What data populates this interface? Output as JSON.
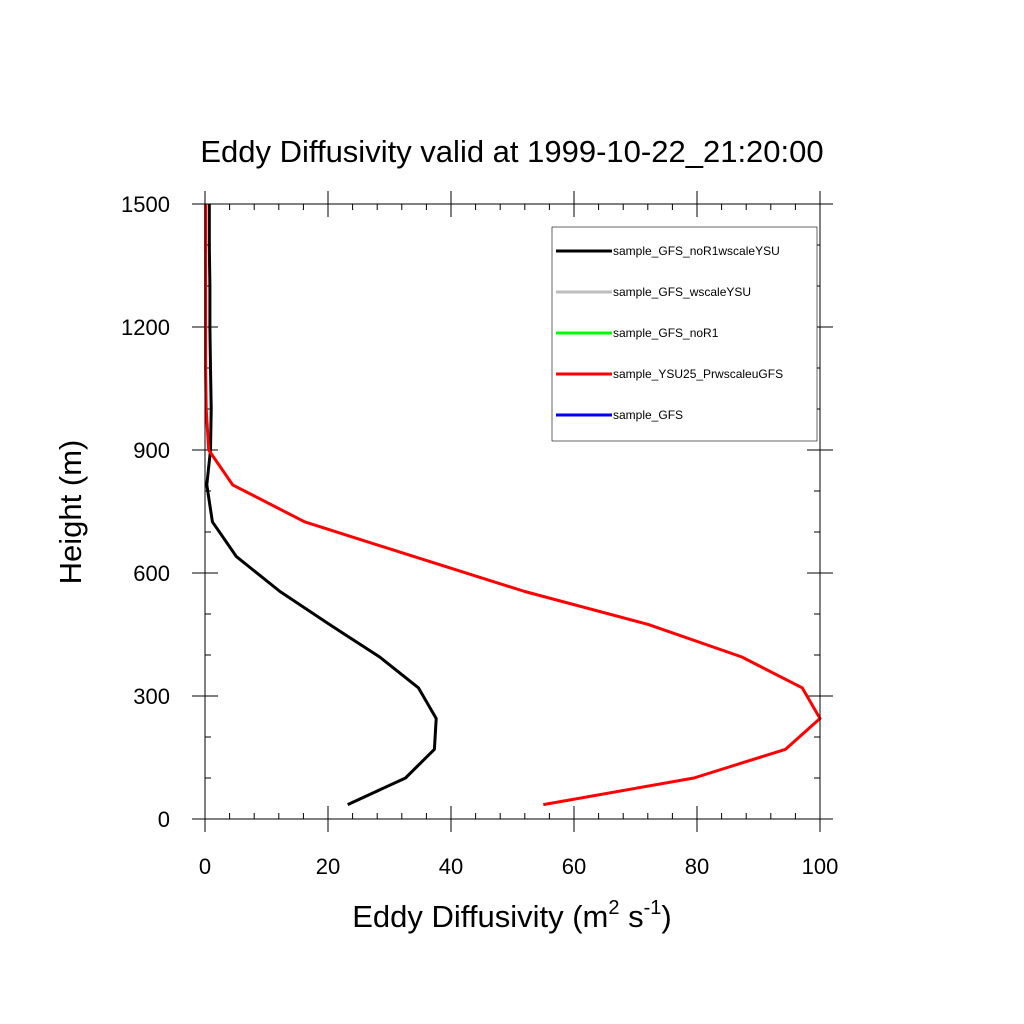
{
  "chart_data": {
    "type": "line",
    "title": "Eddy Diffusivity valid at 1999-10-22_21:20:00",
    "xlabel": {
      "base": "Eddy Diffusivity (m",
      "sup1": "2",
      "mid": " s",
      "sup2": "-1",
      "end": ")"
    },
    "ylabel": "Height (m)",
    "xlim": [
      0,
      100
    ],
    "ylim": [
      0,
      1500
    ],
    "x_ticks": [
      0,
      20,
      40,
      60,
      80,
      100
    ],
    "x_tick_labels": [
      "0",
      "20",
      "40",
      "60",
      "80",
      "100"
    ],
    "y_ticks": [
      0,
      300,
      600,
      900,
      1200,
      1500
    ],
    "y_tick_labels": [
      "0",
      "300",
      "600",
      "900",
      "1200",
      "1500"
    ],
    "x_minor_step": 4,
    "y_minor_step": 100,
    "grid": false,
    "legend_position": "top-right",
    "series": [
      {
        "name": "sample_GFS_noR1wscaleYSU",
        "color": "#000000",
        "points": [
          [
            23.2,
            35
          ],
          [
            32.6,
            100
          ],
          [
            37.3,
            170
          ],
          [
            37.6,
            245
          ],
          [
            34.7,
            320
          ],
          [
            28.4,
            395
          ],
          [
            20.2,
            475
          ],
          [
            12.2,
            555
          ],
          [
            5.1,
            640
          ],
          [
            1.2,
            725
          ],
          [
            0.3,
            815
          ],
          [
            0.9,
            900
          ],
          [
            1.0,
            1000
          ],
          [
            0.9,
            1100
          ],
          [
            0.8,
            1200
          ],
          [
            0.8,
            1300
          ],
          [
            0.7,
            1400
          ],
          [
            0.7,
            1500
          ]
        ]
      },
      {
        "name": "sample_GFS_wscaleYSU",
        "color": "#bebebe",
        "points": []
      },
      {
        "name": "sample_GFS_noR1",
        "color": "#00ff00",
        "points": []
      },
      {
        "name": "sample_YSU25_PrwscaleuGFS",
        "color": "#ff0000",
        "points": [
          [
            55.0,
            35
          ],
          [
            79.5,
            100
          ],
          [
            94.4,
            170
          ],
          [
            100.0,
            245
          ],
          [
            97.1,
            320
          ],
          [
            87.3,
            395
          ],
          [
            72.0,
            475
          ],
          [
            52.0,
            555
          ],
          [
            34.0,
            640
          ],
          [
            16.2,
            725
          ],
          [
            4.5,
            815
          ],
          [
            0.6,
            900
          ],
          [
            0.2,
            1000
          ],
          [
            0.1,
            1100
          ],
          [
            0.1,
            1200
          ],
          [
            0.1,
            1300
          ],
          [
            0.1,
            1400
          ],
          [
            0.1,
            1500
          ]
        ]
      },
      {
        "name": "sample_GFS",
        "color": "#0000ff",
        "points": []
      }
    ]
  }
}
